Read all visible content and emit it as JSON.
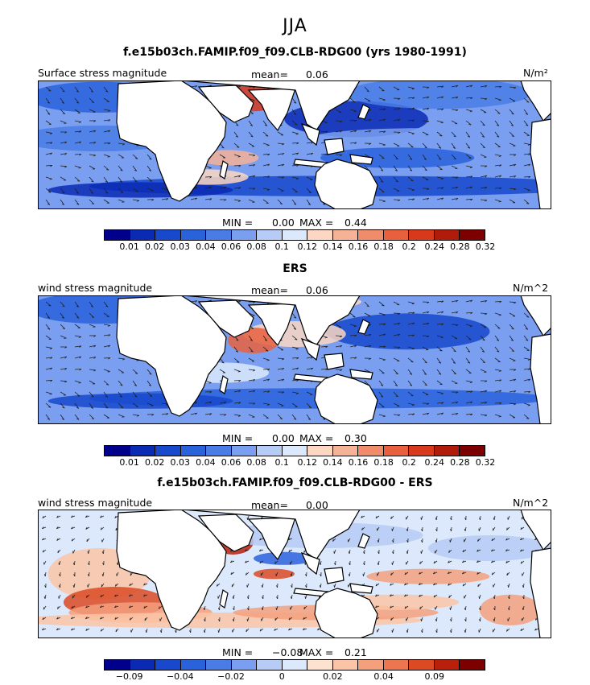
{
  "header": {
    "season": "JJA"
  },
  "colors": {
    "land": "#ffffff",
    "coast": "#000000",
    "seq_palette": [
      "#00008c",
      "#0a2ab4",
      "#1848cc",
      "#2a62dc",
      "#4a7ce6",
      "#7a9ff0",
      "#b6cbf6",
      "#dce9fc",
      "#fcd7c2",
      "#f6b296",
      "#f08c6a",
      "#e8603e",
      "#d8381c",
      "#b01c0c",
      "#7c0000"
    ],
    "diff_palette": [
      "#00008c",
      "#0a2ab4",
      "#1848cc",
      "#2a62dc",
      "#4a7ce6",
      "#7a9ff0",
      "#b6cbf6",
      "#dce9fc",
      "#fde2d0",
      "#fcc4a6",
      "#f4a07c",
      "#ec7650",
      "#dc4a24",
      "#b8200c",
      "#7c0000"
    ]
  },
  "chart_data": [
    {
      "type": "heatmap",
      "title": "f.e15b03ch.FAMIP.f09_f09.CLB-RDG00 (yrs 1980-1991)",
      "field_label": "Surface stress magnitude",
      "mean_label": "mean=",
      "mean": "0.06",
      "units": "N/m²",
      "min_label": "MIN =",
      "min": "0.00",
      "max_label": "MAX =",
      "max": "0.44",
      "colorbar_levels": [
        "0.01",
        "0.02",
        "0.03",
        "0.04",
        "0.06",
        "0.08",
        "0.1",
        "0.12",
        "0.14",
        "0.16",
        "0.18",
        "0.2",
        "0.24",
        "0.28",
        "0.32"
      ],
      "palette": "seq",
      "vectors": "arrows"
    },
    {
      "type": "heatmap",
      "title": "ERS",
      "field_label": "wind stress magnitude",
      "mean_label": "mean=",
      "mean": "0.06",
      "units": "N/m^2",
      "min_label": "MIN =",
      "min": "0.00",
      "max_label": "MAX =",
      "max": "0.30",
      "colorbar_levels": [
        "0.01",
        "0.02",
        "0.03",
        "0.04",
        "0.06",
        "0.08",
        "0.1",
        "0.12",
        "0.14",
        "0.16",
        "0.18",
        "0.2",
        "0.24",
        "0.28",
        "0.32"
      ],
      "palette": "seq",
      "vectors": "arrows"
    },
    {
      "type": "heatmap",
      "title": "f.e15b03ch.FAMIP.f09_f09.CLB-RDG00 - ERS",
      "field_label": "wind stress magnitude",
      "mean_label": "mean=",
      "mean": "0.00",
      "units": "N/m^2",
      "min_label": "MIN =",
      "min": "−0.08",
      "max_label": "MAX =",
      "max": "0.21",
      "colorbar_levels": [
        "−0.09",
        "−0.04",
        "−0.02",
        "0",
        "0.02",
        "0.04",
        "0.09"
      ],
      "palette": "diff",
      "vectors": "arrows"
    }
  ]
}
